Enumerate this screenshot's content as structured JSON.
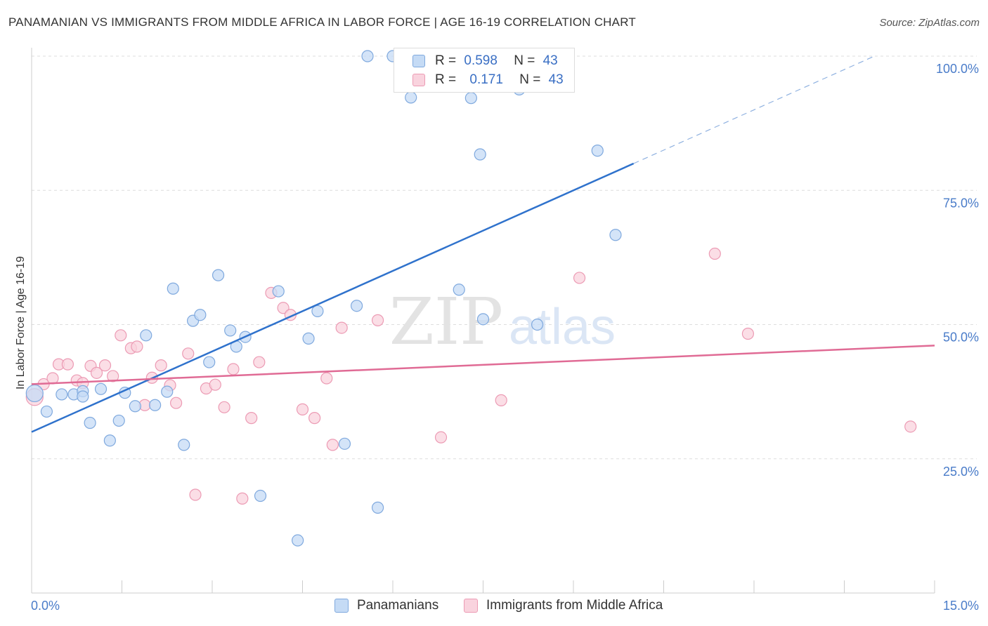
{
  "header": {
    "title": "PANAMANIAN VS IMMIGRANTS FROM MIDDLE AFRICA IN LABOR FORCE | AGE 16-19 CORRELATION CHART",
    "source": "Source: ZipAtlas.com"
  },
  "watermark": {
    "zip": "ZIP",
    "atlas": "atlas"
  },
  "legend": {
    "r_label": "R =",
    "n_label": "N =",
    "rows": [
      {
        "r": "0.598",
        "n": "43",
        "color": "#9fc3ef"
      },
      {
        "r": "0.171",
        "n": "43",
        "color": "#f5b6c8"
      }
    ]
  },
  "bottom_legend": [
    {
      "label": "Panamanians",
      "color": "#9fc3ef"
    },
    {
      "label": "Immigrants from Middle Africa",
      "color": "#f5b6c8"
    }
  ],
  "colors": {
    "blue_fill": "#c5dbf5",
    "blue_stroke": "#7fa9de",
    "blue_line": "#2f72cc",
    "pink_fill": "#f9d3de",
    "pink_stroke": "#ec9bb4",
    "pink_line": "#e06b95",
    "tick_label": "#4a7cc9"
  },
  "chart_data": {
    "type": "scatter",
    "title": "PANAMANIAN VS IMMIGRANTS FROM MIDDLE AFRICA IN LABOR FORCE | AGE 16-19 CORRELATION CHART",
    "xlabel": "",
    "ylabel": "In Labor Force | Age 16-19",
    "xlim": [
      0,
      15
    ],
    "ylim": [
      0,
      100
    ],
    "x_tick_labels": [
      "0.0%",
      "15.0%"
    ],
    "y_ticks": [
      25,
      50,
      75,
      100
    ],
    "y_tick_labels": [
      "25.0%",
      "50.0%",
      "75.0%",
      "100.0%"
    ],
    "grid": "horizontal dashed",
    "legend_position": "top-center",
    "series": [
      {
        "name": "Panamanians",
        "r": 0.598,
        "n": 43,
        "points": [
          [
            0.05,
            37.2
          ],
          [
            0.25,
            33.8
          ],
          [
            0.5,
            37.0
          ],
          [
            0.7,
            37.0
          ],
          [
            0.85,
            37.6
          ],
          [
            0.85,
            36.6
          ],
          [
            0.97,
            31.7
          ],
          [
            1.15,
            38.0
          ],
          [
            1.3,
            28.4
          ],
          [
            1.45,
            32.1
          ],
          [
            1.55,
            37.3
          ],
          [
            1.72,
            34.8
          ],
          [
            1.9,
            48.0
          ],
          [
            2.05,
            35.0
          ],
          [
            2.25,
            37.5
          ],
          [
            2.35,
            56.7
          ],
          [
            2.53,
            27.6
          ],
          [
            2.68,
            50.7
          ],
          [
            2.8,
            51.8
          ],
          [
            2.95,
            43.0
          ],
          [
            3.1,
            59.2
          ],
          [
            3.3,
            48.9
          ],
          [
            3.4,
            45.9
          ],
          [
            3.55,
            47.7
          ],
          [
            3.8,
            18.1
          ],
          [
            4.1,
            56.2
          ],
          [
            4.42,
            9.8
          ],
          [
            4.6,
            47.4
          ],
          [
            4.75,
            52.5
          ],
          [
            5.2,
            27.8
          ],
          [
            5.4,
            53.5
          ],
          [
            5.58,
            100.0
          ],
          [
            5.75,
            15.9
          ],
          [
            6.0,
            100.0
          ],
          [
            6.3,
            92.3
          ],
          [
            7.1,
            56.5
          ],
          [
            7.3,
            92.2
          ],
          [
            7.45,
            81.7
          ],
          [
            7.5,
            51.0
          ],
          [
            8.1,
            93.8
          ],
          [
            8.4,
            50.0
          ],
          [
            9.4,
            82.4
          ],
          [
            9.7,
            66.7
          ]
        ],
        "trend": {
          "x0": 0.0,
          "y0": 30.0,
          "x1": 10.0,
          "y1": 80.0,
          "dashed_to_x": 14.0,
          "dashed_to_y": 100.0
        }
      },
      {
        "name": "Immigrants from Middle Africa",
        "r": 0.171,
        "n": 43,
        "points": [
          [
            0.05,
            36.5
          ],
          [
            0.2,
            38.9
          ],
          [
            0.35,
            40.0
          ],
          [
            0.45,
            42.6
          ],
          [
            0.6,
            42.6
          ],
          [
            0.75,
            39.6
          ],
          [
            0.85,
            39.1
          ],
          [
            0.98,
            42.3
          ],
          [
            1.08,
            41.0
          ],
          [
            1.22,
            42.4
          ],
          [
            1.35,
            40.4
          ],
          [
            1.48,
            48.0
          ],
          [
            1.65,
            45.6
          ],
          [
            1.75,
            45.9
          ],
          [
            1.88,
            35.0
          ],
          [
            2.0,
            40.1
          ],
          [
            2.15,
            42.4
          ],
          [
            2.3,
            38.7
          ],
          [
            2.4,
            35.4
          ],
          [
            2.6,
            44.6
          ],
          [
            2.72,
            18.3
          ],
          [
            2.9,
            38.1
          ],
          [
            3.05,
            38.8
          ],
          [
            3.2,
            34.6
          ],
          [
            3.35,
            41.7
          ],
          [
            3.5,
            17.6
          ],
          [
            3.65,
            32.6
          ],
          [
            3.78,
            43.0
          ],
          [
            3.98,
            55.9
          ],
          [
            4.18,
            53.1
          ],
          [
            4.3,
            51.8
          ],
          [
            4.5,
            34.2
          ],
          [
            4.7,
            32.6
          ],
          [
            4.9,
            40.0
          ],
          [
            5.0,
            27.6
          ],
          [
            5.15,
            49.4
          ],
          [
            5.75,
            50.8
          ],
          [
            6.8,
            29.0
          ],
          [
            7.8,
            35.9
          ],
          [
            9.1,
            58.7
          ],
          [
            11.35,
            63.2
          ],
          [
            11.9,
            48.3
          ],
          [
            14.6,
            31.0
          ]
        ],
        "trend": {
          "x0": 0.0,
          "y0": 38.9,
          "x1": 15.0,
          "y1": 46.1
        }
      }
    ]
  }
}
